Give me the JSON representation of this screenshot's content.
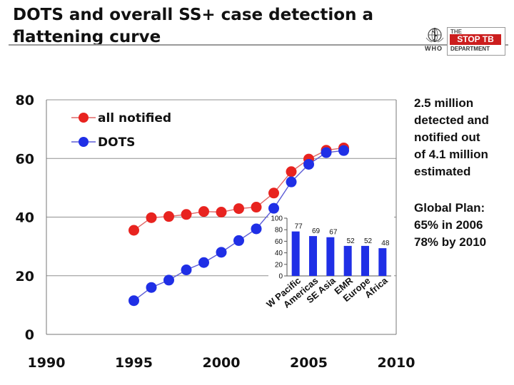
{
  "title": "DOTS and overall SS+ case detection   a\nflattening curve",
  "logos": {
    "who_text": "WHO",
    "stop_tb_the": "THE",
    "stop_tb_main": "STOP TB",
    "stop_tb_department": "DEPARTMENT"
  },
  "side_notes": {
    "detection_note": "2.5 million\ndetected and\nnotified out\nof 4.1 million\nestimated",
    "global_plan": "Global Plan:\n65% in 2006\n78% by 2010"
  },
  "colors": {
    "all_notified": "#e8231f",
    "dots": "#1f2fe6",
    "inset_bar": "#1f2fe6",
    "grid": "#909090"
  },
  "chart_data": [
    {
      "type": "line",
      "title": "",
      "xlabel": "",
      "ylabel": "",
      "xlim": [
        1990,
        2010
      ],
      "ylim": [
        0,
        80
      ],
      "xticks": [
        "1990",
        "1995",
        "2000",
        "2005",
        "2010"
      ],
      "yticks": [
        "0",
        "20",
        "40",
        "60",
        "80"
      ],
      "grid": true,
      "legend_position": "top-left",
      "series": [
        {
          "name": "all notified",
          "x": [
            1995,
            1996,
            1997,
            1998,
            1999,
            2000,
            2001,
            2002,
            2003,
            2004,
            2005,
            2006,
            2007
          ],
          "y": [
            35.5,
            39.8,
            40.2,
            40.9,
            41.9,
            41.7,
            42.9,
            43.4,
            48.2,
            55.5,
            59.8,
            62.8,
            63.6
          ]
        },
        {
          "name": "DOTS",
          "x": [
            1995,
            1996,
            1997,
            1998,
            1999,
            2000,
            2001,
            2002,
            2003,
            2004,
            2005,
            2006,
            2007
          ],
          "y": [
            11.5,
            16,
            18.5,
            22,
            24.5,
            28,
            32,
            36,
            43,
            52,
            58,
            62,
            62.7
          ]
        }
      ]
    },
    {
      "type": "bar",
      "title": "",
      "categories": [
        "W Pacific",
        "Americas",
        "SE Asia",
        "EMR",
        "Europe",
        "Africa"
      ],
      "values": [
        77,
        69,
        67,
        52,
        52,
        48
      ],
      "yticks": [
        "0",
        "20",
        "40",
        "60",
        "80",
        "100"
      ],
      "ylim": [
        0,
        100
      ]
    }
  ]
}
